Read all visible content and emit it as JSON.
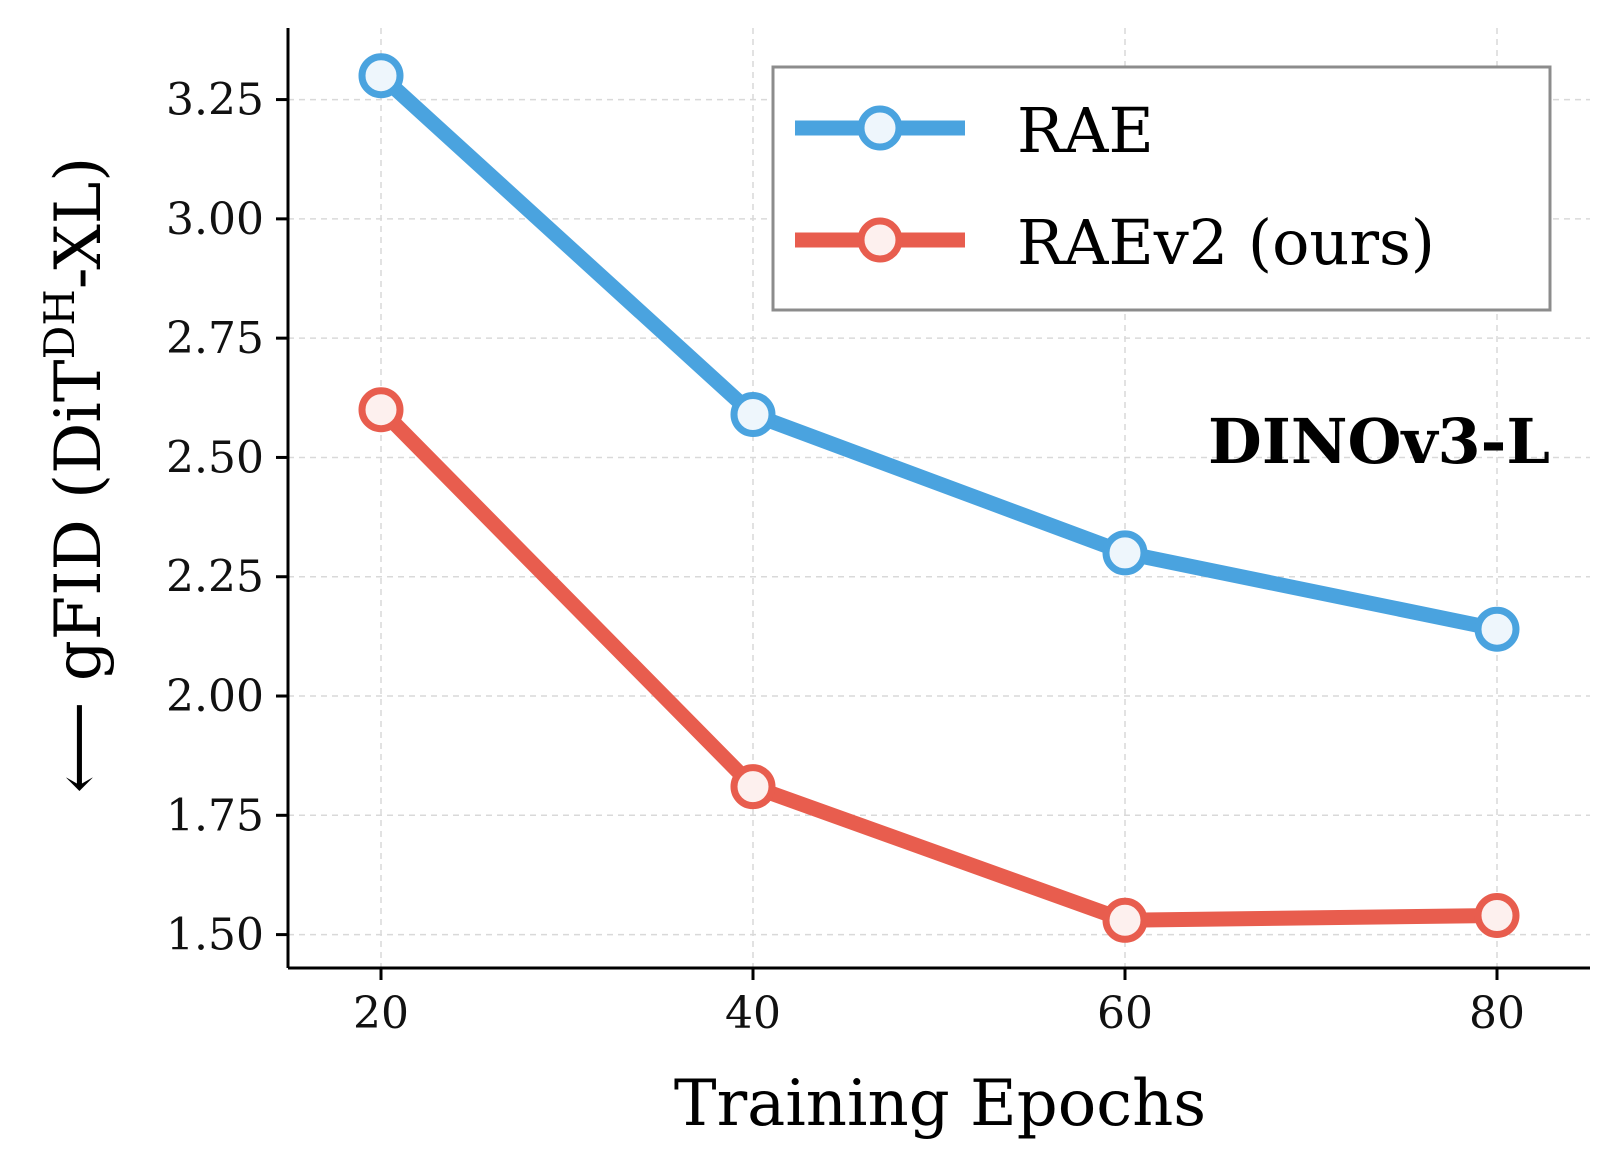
{
  "chart_data": {
    "type": "line",
    "x": [
      20,
      40,
      60,
      80
    ],
    "xticks": [
      "20",
      "40",
      "60",
      "80"
    ],
    "yticks": [
      "1.50",
      "1.75",
      "2.00",
      "2.25",
      "2.50",
      "2.75",
      "3.00",
      "3.25"
    ],
    "ytick_values": [
      1.5,
      1.75,
      2.0,
      2.25,
      2.5,
      2.75,
      3.0,
      3.25
    ],
    "xlim": [
      15,
      85
    ],
    "ylim": [
      1.43,
      3.4
    ],
    "xlabel": "Training Epochs",
    "ylabel": {
      "prefix": "⟵ gFID (DiT",
      "superscript": "DH",
      "suffix": "-XL)"
    },
    "annotation": "DINOv3-L",
    "grid": true,
    "legend_position": "top-right",
    "series": [
      {
        "name": "RAE",
        "color": "#4aa3df",
        "values": [
          3.3,
          2.59,
          2.3,
          2.14
        ]
      },
      {
        "name": "RAEv2 (ours)",
        "color": "#e85d4e",
        "values": [
          2.6,
          1.81,
          1.53,
          1.54
        ]
      }
    ]
  }
}
